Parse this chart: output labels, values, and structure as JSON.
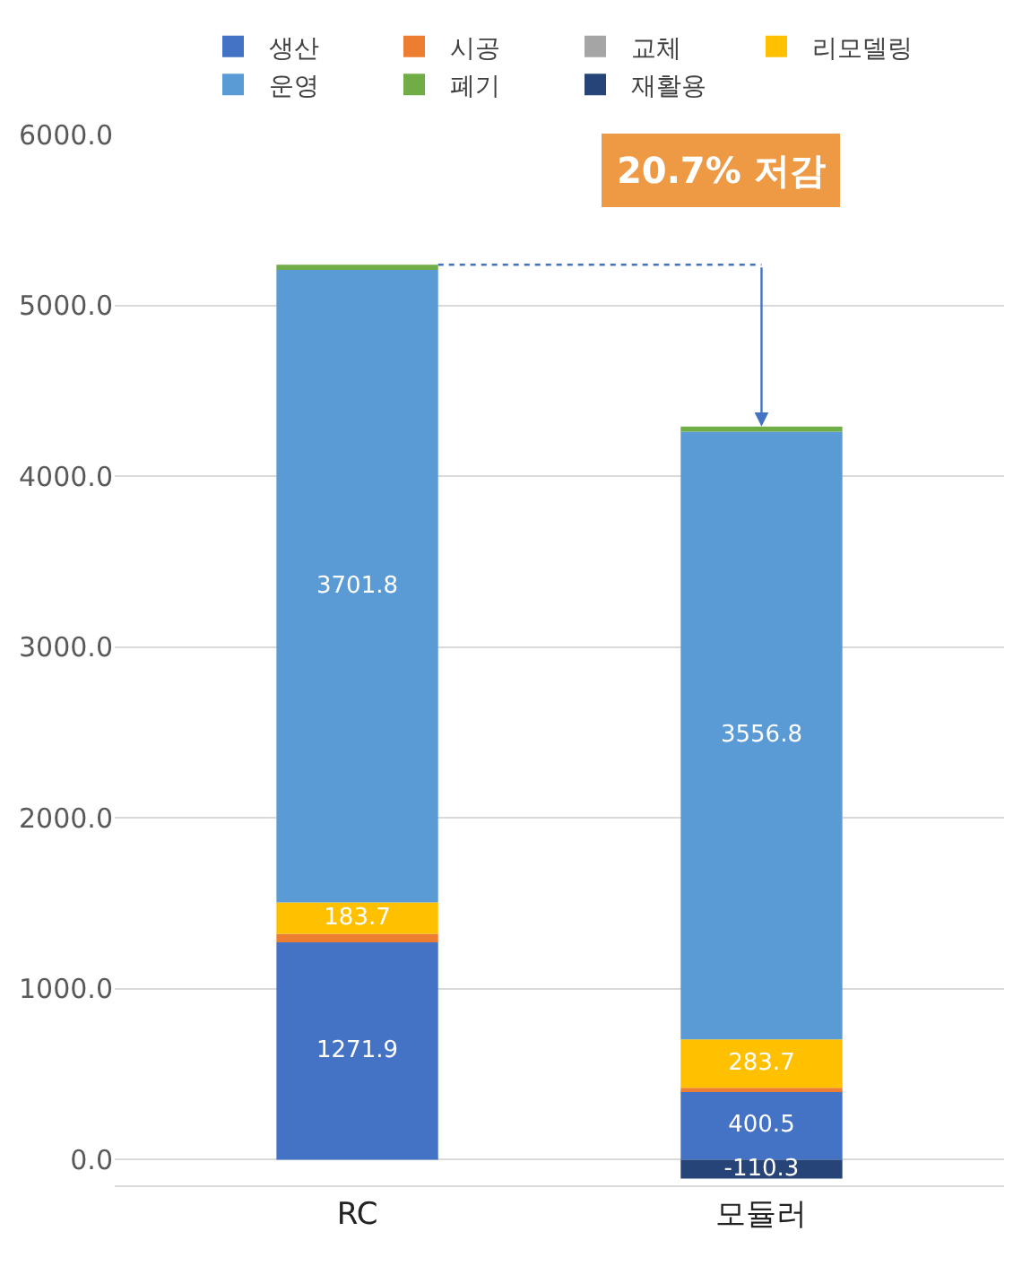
{
  "chart_data": {
    "type": "bar",
    "stacked": true,
    "categories": [
      "RC",
      "모듈러"
    ],
    "series": [
      {
        "name": "생산",
        "color": "#4472c4",
        "values": [
          1271.9,
          400.5
        ],
        "value_labels": [
          "1271.9",
          "400.5"
        ]
      },
      {
        "name": "시공",
        "color": "#ed7d31",
        "values": [
          50,
          20
        ]
      },
      {
        "name": "교체",
        "color": "#a5a5a5",
        "values": [
          0,
          0
        ]
      },
      {
        "name": "리모델링",
        "color": "#ffc000",
        "values": [
          183.7,
          283.7
        ],
        "value_labels": [
          "183.7",
          "283.7"
        ]
      },
      {
        "name": "운영",
        "color": "#5b9bd5",
        "values": [
          3701.8,
          3556.8
        ],
        "value_labels": [
          "3701.8",
          "3556.8"
        ]
      },
      {
        "name": "폐기",
        "color": "#70ad47",
        "values": [
          30,
          30
        ]
      },
      {
        "name": "재활용",
        "color": "#264478",
        "values": [
          0,
          -110.3
        ],
        "value_labels": [
          null,
          "-110.3"
        ]
      }
    ],
    "ylim": [
      -150,
      6000
    ],
    "yticks": [
      {
        "value": 0,
        "label": "0.0"
      },
      {
        "value": 1000,
        "label": "1000.0"
      },
      {
        "value": 2000,
        "label": "2000.0"
      },
      {
        "value": 3000,
        "label": "3000.0"
      },
      {
        "value": 4000,
        "label": "4000.0"
      },
      {
        "value": 5000,
        "label": "5000.0"
      },
      {
        "value": 6000,
        "label": "6000.0"
      }
    ],
    "grid": "y",
    "legend": "top",
    "annotations": [
      "20.7% 저감"
    ]
  }
}
